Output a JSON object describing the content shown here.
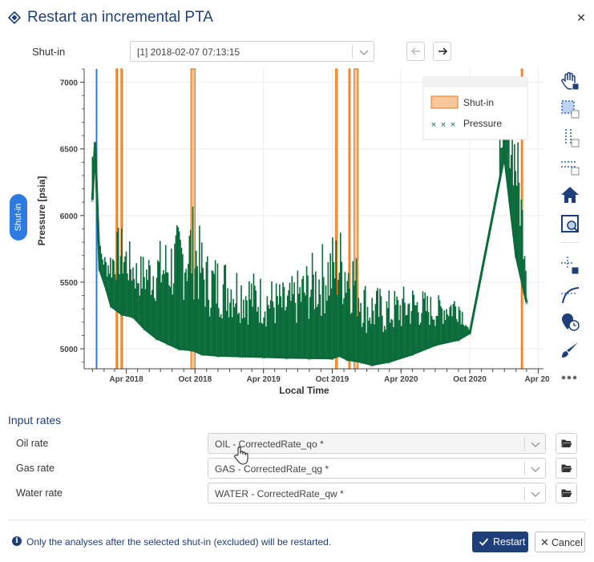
{
  "dialog": {
    "title": "Restart an incremental PTA",
    "close_icon": "close-icon",
    "logo_icon": "diamond-logo-icon"
  },
  "shutin": {
    "label": "Shut-in",
    "selected": "[1] 2018-02-07 07:13:15",
    "prev_icon": "arrow-left-icon",
    "next_icon": "arrow-right-icon"
  },
  "side_tab": {
    "label": "Shut-in"
  },
  "chart_data": {
    "type": "scatter",
    "xlabel": "Local Time",
    "ylabel": "Pressure [psia]",
    "x_tick_labels": [
      "Apr 2018",
      "Oct 2018",
      "Apr 2019",
      "Oct 2019",
      "Apr 2020",
      "Oct 2020",
      "Apr 20"
    ],
    "y_tick_labels": [
      "5000",
      "5500",
      "6000",
      "6500",
      "7000"
    ],
    "ylim": [
      4850,
      7100
    ],
    "xlim": [
      "2017-12-10",
      "2021-04-15"
    ],
    "legend": {
      "placement": "top-right",
      "entries": [
        "Shut-in",
        "Pressure"
      ]
    },
    "grid": true,
    "series": [
      {
        "name": "Pressure",
        "color": "#0b6b3a",
        "points": [
          [
            "2018-01-01",
            6120
          ],
          [
            "2018-01-08",
            6550
          ],
          [
            "2018-01-20",
            5600
          ],
          [
            "2018-02-07",
            5450
          ],
          [
            "2018-02-20",
            5320
          ],
          [
            "2018-03-20",
            5260
          ],
          [
            "2018-04-20",
            5240
          ],
          [
            "2018-05-20",
            5150
          ],
          [
            "2018-06-20",
            5080
          ],
          [
            "2018-07-20",
            5040
          ],
          [
            "2018-08-20",
            5000
          ],
          [
            "2018-09-25",
            4990
          ],
          [
            "2018-10-20",
            4960
          ],
          [
            "2018-12-01",
            4950
          ],
          [
            "2019-02-01",
            4945
          ],
          [
            "2019-04-01",
            4940
          ],
          [
            "2019-06-01",
            4935
          ],
          [
            "2019-08-01",
            4932
          ],
          [
            "2019-10-01",
            4930
          ],
          [
            "2019-10-20",
            4950
          ],
          [
            "2019-11-10",
            4920
          ],
          [
            "2019-12-20",
            4900
          ],
          [
            "2020-01-15",
            4880
          ],
          [
            "2020-03-01",
            4905
          ],
          [
            "2020-05-01",
            4960
          ],
          [
            "2020-07-01",
            5030
          ],
          [
            "2020-09-01",
            5070
          ],
          [
            "2020-10-01",
            5120
          ],
          [
            "2021-01-01",
            6450
          ],
          [
            "2021-02-01",
            5700
          ],
          [
            "2021-03-01",
            5350
          ]
        ]
      }
    ],
    "upper_envelope": [
      [
        "2018-01-01",
        6600
      ],
      [
        "2018-01-20",
        5800
      ],
      [
        "2018-02-07",
        5700
      ],
      [
        "2018-03-15",
        5950
      ],
      [
        "2018-05-01",
        5700
      ],
      [
        "2018-06-15",
        5800
      ],
      [
        "2018-08-01",
        5900
      ],
      [
        "2018-09-25",
        6100
      ],
      [
        "2018-11-01",
        5750
      ],
      [
        "2019-01-01",
        5700
      ],
      [
        "2019-03-01",
        5600
      ],
      [
        "2019-06-01",
        5500
      ],
      [
        "2019-08-01",
        5700
      ],
      [
        "2019-10-20",
        5950
      ],
      [
        "2019-11-20",
        5850
      ],
      [
        "2020-01-01",
        5500
      ],
      [
        "2020-03-01",
        5450
      ],
      [
        "2020-05-01",
        5500
      ],
      [
        "2020-07-01",
        5400
      ],
      [
        "2020-09-01",
        5450
      ],
      [
        "2020-10-01",
        5120
      ],
      [
        "2021-01-01",
        6900
      ],
      [
        "2021-02-01",
        6750
      ],
      [
        "2021-03-01",
        5800
      ]
    ],
    "shutin_bands": [
      {
        "start": "2018-03-05",
        "end": "2018-03-06"
      },
      {
        "start": "2018-03-18",
        "end": "2018-03-19"
      },
      {
        "start": "2018-09-20",
        "end": "2018-10-01"
      },
      {
        "start": "2019-10-10",
        "end": "2019-10-14"
      },
      {
        "start": "2019-11-14",
        "end": "2019-11-17"
      },
      {
        "start": "2019-11-28",
        "end": "2019-12-08"
      },
      {
        "start": "2021-02-15",
        "end": "2021-02-16"
      }
    ],
    "selected_marker": {
      "date": "2018-01-12",
      "color": "#2d7be0"
    },
    "shutin_color": "#e8761a",
    "shutin_fill": "#f7c79a"
  },
  "toolbar": {
    "tools": [
      "pan-icon",
      "box-select-icon",
      "x-select-icon",
      "y-select-icon",
      "home-icon",
      "zoom-box-icon",
      "point-select-icon",
      "curve-fit-icon",
      "marker-time-icon",
      "paint-icon",
      "more-icon"
    ]
  },
  "input_rates": {
    "title": "Input rates",
    "rows": [
      {
        "label": "Oil rate",
        "value": "OIL - CorrectedRate_qo *"
      },
      {
        "label": "Gas rate",
        "value": "GAS - CorrectedRate_qg *"
      },
      {
        "label": "Water rate",
        "value": "WATER - CorrectedRate_qw *"
      }
    ],
    "folder_icon": "folder-open-icon"
  },
  "footer": {
    "info_icon": "info-icon",
    "info_letter": "i",
    "info_text": "Only the analyses after the selected shut-in (excluded) will be restarted.",
    "restart_label": "Restart",
    "cancel_label": "Cancel"
  }
}
